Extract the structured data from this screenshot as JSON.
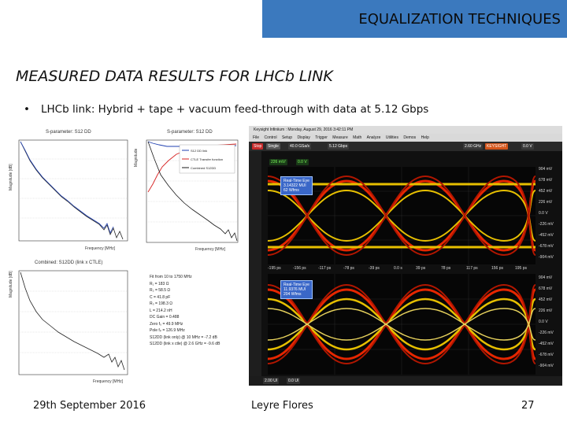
{
  "header": {
    "title": "EQUALIZATION TECHNIQUES",
    "color": "#3b79be"
  },
  "slide": {
    "title": "MEASURED DATA RESULTS FOR LHCb LINK",
    "bullet_marker": "•",
    "bullet": "LHCb link: Hybrid + tape + vacuum feed-through with data at 5.12 Gbps"
  },
  "plots": {
    "p1": {
      "title": "S-parameter: S12 DD",
      "ylabel": "Magnitude [dB]",
      "xlabel": "Frequency [MHz]"
    },
    "p2": {
      "title": "S-parameter: S12 DD",
      "ylabel": "Magnitude",
      "xlabel": "Frequency [MHz]",
      "legend": [
        "S12 DD link",
        "CTLE Transfer function",
        "Combined S12DD"
      ],
      "legend_colors": [
        "#1f3fb0",
        "#d62020",
        "#1a1a1a"
      ]
    },
    "p3": {
      "title": "Combined: S12DD (link x CTLE)",
      "ylabel": "Magnitude [dB]",
      "xlabel": "Frequency [MHz]"
    }
  },
  "fit": {
    "lines": [
      "Fit from    10 to   1750 MHz",
      "R₁ = 183 Ω",
      "R₂ = 58.5 Ω",
      "C = 41.8 pF",
      "R₃ = 198.3 Ω",
      "L = 214.2 nH",
      "DC Gain = 0.488",
      "Zero f₀ = 49.9 MHz",
      "Pole fₚ = 126.9 MHz",
      "S12DD (link only) @ 10 MHz = -7.2 dB",
      "S12DD (link x ctle) @ 2.6 GHz = -9.6 dB"
    ]
  },
  "scope": {
    "titlebar": "Keysight Infiniium : Monday, August 29, 2016 3:42:11 PM",
    "menu": [
      "File",
      "Control",
      "Setup",
      "Display",
      "Trigger",
      "Measure",
      "Math",
      "Analyze",
      "Utilities",
      "Demos",
      "Help"
    ],
    "brand": "KEYSIGHT",
    "toolbar": [
      "Stop",
      "Single",
      "40.0 GSa/s",
      "5.12 Gbps",
      "2.60 GHz",
      "0.0 V"
    ],
    "ch_scale": "226 mV/",
    "ch_offset": "0.0 V",
    "eye1": {
      "label": "Real-Time Eye",
      "uis": "3.14322 MUI",
      "wfms": "62 Wfms"
    },
    "eye2": {
      "label": "Real-Time Eye",
      "uis": "11.9376 MUI",
      "wfms": "204 Wfms"
    },
    "y_ticks_top": [
      "904 mV",
      "678 mV",
      "452 mV",
      "226 mV",
      "0.0 V",
      "-226 mV",
      "-452 mV",
      "-678 mV",
      "-904 mV"
    ],
    "y_ticks_bottom": [
      "904 mV",
      "678 mV",
      "452 mV",
      "226 mV",
      "0.0 V",
      "-226 mV",
      "-452 mV",
      "-678 mV",
      "-904 mV"
    ],
    "x_ticks": [
      "-195 ps",
      "-156 ps",
      "-117 ps",
      "-78 ps",
      "-39 ps",
      "0.0 s",
      "39 ps",
      "78 ps",
      "117 ps",
      "156 ps",
      "195 ps"
    ],
    "bottom_left": "2.00 UI",
    "bottom_right": "0.0 UI",
    "eye_color_hot": "#ff2a00",
    "eye_color_warm": "#ffd400"
  },
  "footer": {
    "date": "29th September 2016",
    "author": "Leyre Flores",
    "page": "27"
  }
}
